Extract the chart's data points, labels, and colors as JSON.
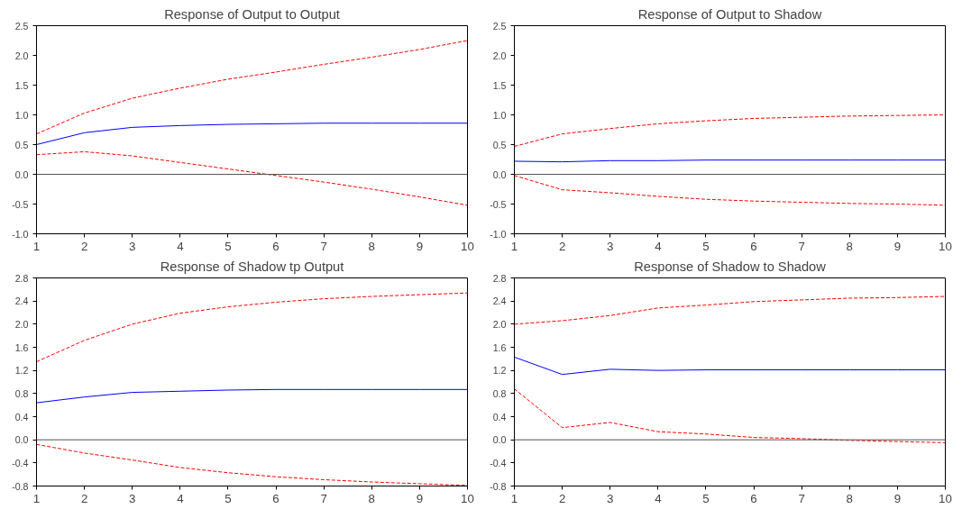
{
  "chart_data": [
    {
      "type": "line",
      "title": "Response of Output to Output",
      "x": [
        1,
        2,
        3,
        4,
        5,
        6,
        7,
        8,
        9,
        10
      ],
      "xlim": [
        1,
        10
      ],
      "xticks": [
        1,
        2,
        3,
        4,
        5,
        6,
        7,
        8,
        9,
        10
      ],
      "ylim": [
        -1.0,
        2.5
      ],
      "yticks": [
        {
          "value": -1.0,
          "label": "-1.0"
        },
        {
          "value": -0.5,
          "label": "-0.5"
        },
        {
          "value": 0,
          "label": "0.0"
        },
        {
          "value": 0.5,
          "label": "0.5"
        },
        {
          "value": 1.0,
          "label": "1.0"
        },
        {
          "value": 1.5,
          "label": "1.5"
        },
        {
          "value": 2.0,
          "label": "2.0"
        },
        {
          "value": 2.5,
          "label": "2.5"
        }
      ],
      "grid": false,
      "ref_lines": [
        {
          "axis": "y",
          "value": 0,
          "color": "#555555"
        }
      ],
      "series": [
        {
          "color": "#ff0000",
          "line_style": "dashed",
          "values": [
            0.68,
            1.03,
            1.28,
            1.45,
            1.6,
            1.72,
            1.85,
            1.97,
            2.1,
            2.25
          ]
        },
        {
          "color": "#0000ff",
          "line_style": "solid",
          "values": [
            0.5,
            0.7,
            0.79,
            0.82,
            0.84,
            0.85,
            0.86,
            0.86,
            0.86,
            0.86
          ]
        },
        {
          "color": "#ff0000",
          "line_style": "dashed",
          "values": [
            0.33,
            0.38,
            0.31,
            0.2,
            0.09,
            -0.02,
            -0.13,
            -0.25,
            -0.38,
            -0.52
          ]
        }
      ]
    },
    {
      "type": "line",
      "title": "Response of Output to Shadow",
      "x": [
        1,
        2,
        3,
        4,
        5,
        6,
        7,
        8,
        9,
        10
      ],
      "xlim": [
        1,
        10
      ],
      "xticks": [
        1,
        2,
        3,
        4,
        5,
        6,
        7,
        8,
        9,
        10
      ],
      "ylim": [
        -1.0,
        2.5
      ],
      "yticks": [
        {
          "value": -1.0,
          "label": "-1.0"
        },
        {
          "value": -0.5,
          "label": "-0.5"
        },
        {
          "value": 0,
          "label": "0.0"
        },
        {
          "value": 0.5,
          "label": "0.5"
        },
        {
          "value": 1.0,
          "label": "1.0"
        },
        {
          "value": 1.5,
          "label": "1.5"
        },
        {
          "value": 2.0,
          "label": "2.0"
        },
        {
          "value": 2.5,
          "label": "2.5"
        }
      ],
      "grid": false,
      "ref_lines": [
        {
          "axis": "y",
          "value": 0,
          "color": "#555555"
        }
      ],
      "series": [
        {
          "color": "#ff0000",
          "line_style": "dashed",
          "values": [
            0.47,
            0.68,
            0.77,
            0.85,
            0.9,
            0.94,
            0.96,
            0.98,
            0.99,
            1.0
          ]
        },
        {
          "color": "#0000ff",
          "line_style": "solid",
          "values": [
            0.22,
            0.21,
            0.23,
            0.23,
            0.24,
            0.24,
            0.24,
            0.24,
            0.24,
            0.24
          ]
        },
        {
          "color": "#ff0000",
          "line_style": "dashed",
          "values": [
            -0.02,
            -0.26,
            -0.31,
            -0.37,
            -0.42,
            -0.45,
            -0.47,
            -0.49,
            -0.5,
            -0.52
          ]
        }
      ]
    },
    {
      "type": "line",
      "title": "Response of Shadow tp Output",
      "x": [
        1,
        2,
        3,
        4,
        5,
        6,
        7,
        8,
        9,
        10
      ],
      "xlim": [
        1,
        10
      ],
      "xticks": [
        1,
        2,
        3,
        4,
        5,
        6,
        7,
        8,
        9,
        10
      ],
      "ylim": [
        -0.8,
        2.8
      ],
      "yticks": [
        {
          "value": -0.8,
          "label": "-0.8"
        },
        {
          "value": -0.4,
          "label": "-0.4"
        },
        {
          "value": 0,
          "label": "0.0"
        },
        {
          "value": 0.4,
          "label": "0.4"
        },
        {
          "value": 0.8,
          "label": "0.8"
        },
        {
          "value": 1.2,
          "label": "1.2"
        },
        {
          "value": 1.6,
          "label": "1.6"
        },
        {
          "value": 2.0,
          "label": "2.0"
        },
        {
          "value": 2.4,
          "label": "2.4"
        },
        {
          "value": 2.8,
          "label": "2.8"
        }
      ],
      "grid": false,
      "ref_lines": [
        {
          "axis": "y",
          "value": 0,
          "color": "#555555"
        }
      ],
      "series": [
        {
          "color": "#ff0000",
          "line_style": "dashed",
          "values": [
            1.35,
            1.72,
            2.0,
            2.19,
            2.3,
            2.38,
            2.44,
            2.48,
            2.51,
            2.54
          ]
        },
        {
          "color": "#0000ff",
          "line_style": "solid",
          "values": [
            0.64,
            0.74,
            0.82,
            0.84,
            0.86,
            0.87,
            0.87,
            0.87,
            0.87,
            0.87
          ]
        },
        {
          "color": "#ff0000",
          "line_style": "dashed",
          "values": [
            -0.08,
            -0.23,
            -0.35,
            -0.48,
            -0.57,
            -0.64,
            -0.69,
            -0.73,
            -0.76,
            -0.79
          ]
        }
      ]
    },
    {
      "type": "line",
      "title": "Response of Shadow to Shadow",
      "x": [
        1,
        2,
        3,
        4,
        5,
        6,
        7,
        8,
        9,
        10
      ],
      "xlim": [
        1,
        10
      ],
      "xticks": [
        1,
        2,
        3,
        4,
        5,
        6,
        7,
        8,
        9,
        10
      ],
      "ylim": [
        -0.8,
        2.8
      ],
      "yticks": [
        {
          "value": -0.8,
          "label": "-0.8"
        },
        {
          "value": -0.4,
          "label": "-0.4"
        },
        {
          "value": 0,
          "label": "0.0"
        },
        {
          "value": 0.4,
          "label": "0.4"
        },
        {
          "value": 0.8,
          "label": "0.8"
        },
        {
          "value": 1.2,
          "label": "1.2"
        },
        {
          "value": 1.6,
          "label": "1.6"
        },
        {
          "value": 2.0,
          "label": "2.0"
        },
        {
          "value": 2.4,
          "label": "2.4"
        },
        {
          "value": 2.8,
          "label": "2.8"
        }
      ],
      "grid": false,
      "ref_lines": [
        {
          "axis": "y",
          "value": 0,
          "color": "#555555"
        }
      ],
      "series": [
        {
          "color": "#ff0000",
          "line_style": "dashed",
          "values": [
            2.0,
            2.06,
            2.15,
            2.28,
            2.33,
            2.39,
            2.42,
            2.45,
            2.46,
            2.48
          ]
        },
        {
          "color": "#0000ff",
          "line_style": "solid",
          "values": [
            1.43,
            1.13,
            1.22,
            1.2,
            1.21,
            1.21,
            1.21,
            1.21,
            1.21,
            1.21
          ]
        },
        {
          "color": "#ff0000",
          "line_style": "dashed",
          "values": [
            0.88,
            0.21,
            0.3,
            0.14,
            0.1,
            0.04,
            0.02,
            -0.01,
            -0.03,
            -0.05
          ]
        }
      ]
    }
  ]
}
